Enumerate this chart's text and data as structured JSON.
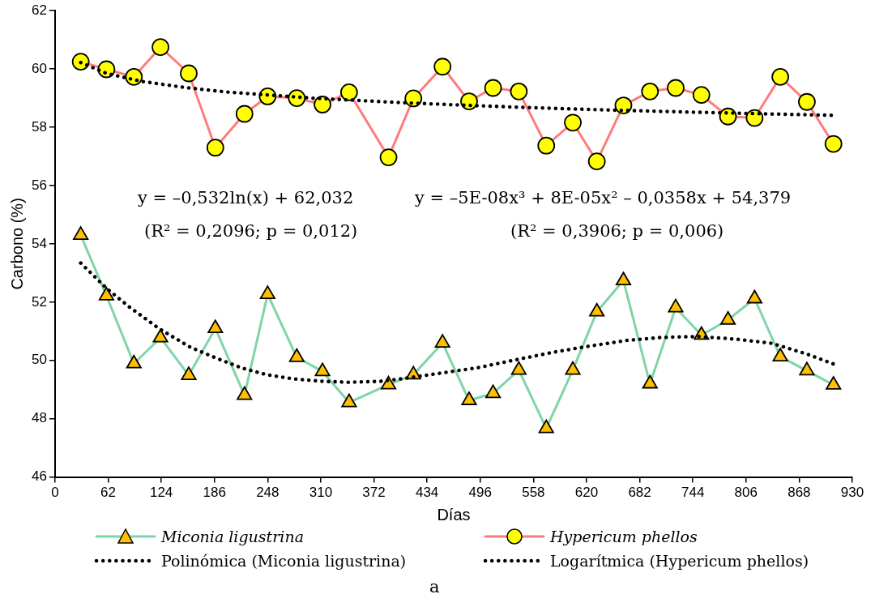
{
  "chart_data": {
    "type": "line",
    "xlabel": "Días",
    "ylabel": "Carbono (%)",
    "xlim": [
      0,
      930
    ],
    "xticks": [
      0,
      62,
      124,
      186,
      248,
      310,
      372,
      434,
      496,
      558,
      620,
      682,
      744,
      806,
      868,
      930
    ],
    "ylim": [
      46,
      62
    ],
    "yticks": [
      46,
      48,
      50,
      52,
      54,
      56,
      58,
      60,
      62
    ],
    "grid": false,
    "legend": "bottom",
    "x": [
      30,
      60,
      92,
      123,
      156,
      187,
      221,
      248,
      282,
      312,
      343,
      389,
      418,
      452,
      483,
      511,
      541,
      573,
      604,
      632,
      663,
      694,
      724,
      754,
      785,
      816,
      846,
      877,
      908
    ],
    "series": [
      {
        "name": "Miconia ligustrina",
        "marker": "triangle",
        "line_style": "solid",
        "color": "#7fd4a8",
        "colors": [
          "#ffc000",
          "#ffc000",
          "#ffc000",
          "#ffc000",
          "#ffc000",
          "#ffc000",
          "#ffc000",
          "#ffc000",
          "#ffc000",
          "#ffc000",
          "#ffc000",
          "#ffc000",
          "#ffc000",
          "#ffc000",
          "#ffc000",
          "#ffc000",
          "#ffc000",
          "#ffc000",
          "#ffc000",
          "#ffc000",
          "#ffc000",
          "#ffc000",
          "#ffc000",
          "#ffc000",
          "#ffc000",
          "#ffc000",
          "#ffc000",
          "#ffc000",
          "#ffc000"
        ],
        "values": [
          54.3,
          52.22,
          49.89,
          50.78,
          49.49,
          51.1,
          48.81,
          52.27,
          50.11,
          49.62,
          48.56,
          49.17,
          49.51,
          50.6,
          48.63,
          48.87,
          49.67,
          47.67,
          49.67,
          51.67,
          52.74,
          49.2,
          51.81,
          50.87,
          51.39,
          52.12,
          50.13,
          49.65,
          49.16
        ]
      },
      {
        "name": "Hypericum phellos",
        "marker": "circle",
        "line_style": "solid",
        "color": "#ff7c7c",
        "colors": [
          "#ffff00",
          "#ffff00",
          "#ffff00",
          "#ffff00",
          "#ffff00",
          "#ffff00",
          "#ffff00",
          "#ffff00",
          "#ffff00",
          "#ffff00",
          "#ffff00",
          "#ffff00",
          "#ffff00",
          "#ffff00",
          "#ffff00",
          "#ffff00",
          "#ffff00",
          "#ffff00",
          "#ffff00",
          "#ffff00",
          "#ffff00",
          "#ffff00",
          "#ffff00",
          "#ffff00",
          "#ffff00",
          "#ffff00",
          "#ffff00",
          "#ffff00",
          "#ffff00"
        ],
        "values": [
          60.25,
          59.99,
          59.73,
          60.75,
          59.85,
          57.3,
          58.46,
          59.06,
          59.0,
          58.78,
          59.2,
          56.97,
          58.99,
          60.08,
          58.89,
          59.35,
          59.23,
          57.37,
          58.16,
          56.83,
          58.75,
          59.23,
          59.35,
          59.11,
          58.37,
          58.32,
          59.73,
          58.87,
          57.43
        ]
      },
      {
        "name": "Polinómica (Miconia ligustrina)",
        "marker": "none",
        "line_style": "dotted",
        "color": "#000000",
        "x": [
          30,
          61,
          86,
          122,
          158,
          188,
          218,
          247,
          280,
          314,
          344,
          378,
          409,
          442,
          495,
          537,
          581,
          621,
          665,
          707,
          750,
          794,
          836,
          877,
          908
        ],
        "values": [
          53.34,
          52.45,
          51.85,
          51.08,
          50.45,
          50.08,
          49.74,
          49.51,
          49.36,
          49.28,
          49.25,
          49.28,
          49.39,
          49.53,
          49.76,
          50.02,
          50.28,
          50.48,
          50.68,
          50.79,
          50.82,
          50.73,
          50.59,
          50.22,
          49.88
        ]
      },
      {
        "name": "Logarítmica (Hypericum phellos)",
        "marker": "none",
        "line_style": "dotted",
        "color": "#000000",
        "x": [
          30,
          60,
          100,
          150,
          200,
          300,
          400,
          500,
          600,
          700,
          800,
          908
        ],
        "values": [
          60.22,
          59.85,
          59.58,
          59.37,
          59.21,
          59.0,
          58.85,
          58.73,
          58.63,
          58.55,
          58.48,
          58.41
        ]
      }
    ],
    "annotations": [
      "y = –0,532ln(x) + 62,032",
      "(R² = 0,2096;  p = 0,012)",
      "y = –5E-08x³ + 8E-05x² – 0,0358x + 54,379",
      "(R² = 0,3906; p = 0,006)",
      "a"
    ]
  }
}
